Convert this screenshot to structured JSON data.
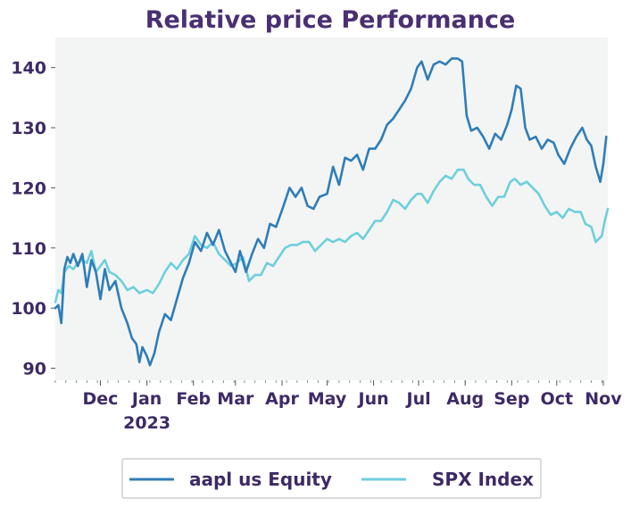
{
  "chart_data": {
    "type": "line",
    "title": "Relative price Performance",
    "xlabel": "",
    "ylabel": "",
    "ylim": [
      88,
      145
    ],
    "yticks": [
      90,
      100,
      110,
      120,
      130,
      140
    ],
    "xlim": [
      "2022-11-01",
      "2023-11-04"
    ],
    "xticks": [
      {
        "date": "2022-12-01",
        "label": "Dec"
      },
      {
        "date": "2023-01-01",
        "label": "Jan",
        "sublabel": "2023"
      },
      {
        "date": "2023-02-01",
        "label": "Feb"
      },
      {
        "date": "2023-03-01",
        "label": "Mar"
      },
      {
        "date": "2023-04-01",
        "label": "Apr"
      },
      {
        "date": "2023-05-01",
        "label": "May"
      },
      {
        "date": "2023-06-01",
        "label": "Jun"
      },
      {
        "date": "2023-07-01",
        "label": "Jul"
      },
      {
        "date": "2023-08-01",
        "label": "Aug"
      },
      {
        "date": "2023-09-01",
        "label": "Sep"
      },
      {
        "date": "2023-10-01",
        "label": "Oct"
      },
      {
        "date": "2023-11-01",
        "label": "Nov"
      }
    ],
    "grid": false,
    "legend_position": "bottom",
    "background_color": "#f3f5f4",
    "series": [
      {
        "name": "aapl us Equity",
        "color": "#2f7db8",
        "points": [
          [
            "2022-11-01",
            100.0
          ],
          [
            "2022-11-03",
            100.5
          ],
          [
            "2022-11-05",
            97.5
          ],
          [
            "2022-11-07",
            106.5
          ],
          [
            "2022-11-09",
            108.5
          ],
          [
            "2022-11-11",
            107.5
          ],
          [
            "2022-11-13",
            109.0
          ],
          [
            "2022-11-16",
            107.0
          ],
          [
            "2022-11-19",
            109.0
          ],
          [
            "2022-11-22",
            103.5
          ],
          [
            "2022-11-25",
            108.0
          ],
          [
            "2022-11-28",
            106.0
          ],
          [
            "2022-12-01",
            101.5
          ],
          [
            "2022-12-04",
            106.5
          ],
          [
            "2022-12-07",
            103.0
          ],
          [
            "2022-12-11",
            104.5
          ],
          [
            "2022-12-15",
            100.0
          ],
          [
            "2022-12-19",
            97.5
          ],
          [
            "2022-12-22",
            95.0
          ],
          [
            "2022-12-25",
            94.0
          ],
          [
            "2022-12-27",
            91.0
          ],
          [
            "2022-12-29",
            93.5
          ],
          [
            "2023-01-01",
            92.0
          ],
          [
            "2023-01-03",
            90.5
          ],
          [
            "2023-01-06",
            92.5
          ],
          [
            "2023-01-09",
            96.0
          ],
          [
            "2023-01-13",
            99.0
          ],
          [
            "2023-01-17",
            98.0
          ],
          [
            "2023-01-21",
            101.5
          ],
          [
            "2023-01-25",
            105.0
          ],
          [
            "2023-01-29",
            107.5
          ],
          [
            "2023-02-02",
            111.0
          ],
          [
            "2023-02-06",
            109.5
          ],
          [
            "2023-02-10",
            112.5
          ],
          [
            "2023-02-14",
            110.5
          ],
          [
            "2023-02-18",
            113.0
          ],
          [
            "2023-02-22",
            109.5
          ],
          [
            "2023-02-26",
            107.5
          ],
          [
            "2023-03-01",
            106.0
          ],
          [
            "2023-03-04",
            109.5
          ],
          [
            "2023-03-08",
            106.0
          ],
          [
            "2023-03-12",
            109.0
          ],
          [
            "2023-03-16",
            111.5
          ],
          [
            "2023-03-20",
            110.0
          ],
          [
            "2023-03-24",
            114.0
          ],
          [
            "2023-03-28",
            113.5
          ],
          [
            "2023-04-02",
            117.0
          ],
          [
            "2023-04-06",
            120.0
          ],
          [
            "2023-04-10",
            118.5
          ],
          [
            "2023-04-14",
            120.0
          ],
          [
            "2023-04-18",
            117.0
          ],
          [
            "2023-04-22",
            116.5
          ],
          [
            "2023-04-26",
            118.5
          ],
          [
            "2023-05-01",
            119.0
          ],
          [
            "2023-05-05",
            123.5
          ],
          [
            "2023-05-09",
            120.5
          ],
          [
            "2023-05-13",
            125.0
          ],
          [
            "2023-05-17",
            124.5
          ],
          [
            "2023-05-21",
            125.5
          ],
          [
            "2023-05-25",
            123.0
          ],
          [
            "2023-05-29",
            126.5
          ],
          [
            "2023-06-02",
            126.5
          ],
          [
            "2023-06-06",
            128.0
          ],
          [
            "2023-06-10",
            130.5
          ],
          [
            "2023-06-14",
            131.5
          ],
          [
            "2023-06-18",
            133.0
          ],
          [
            "2023-06-22",
            134.5
          ],
          [
            "2023-06-26",
            136.5
          ],
          [
            "2023-06-30",
            140.0
          ],
          [
            "2023-07-03",
            141.0
          ],
          [
            "2023-07-07",
            138.0
          ],
          [
            "2023-07-11",
            140.5
          ],
          [
            "2023-07-15",
            141.0
          ],
          [
            "2023-07-19",
            140.5
          ],
          [
            "2023-07-23",
            141.5
          ],
          [
            "2023-07-27",
            141.5
          ],
          [
            "2023-07-30",
            141.0
          ],
          [
            "2023-08-02",
            132.0
          ],
          [
            "2023-08-05",
            129.5
          ],
          [
            "2023-08-09",
            130.0
          ],
          [
            "2023-08-13",
            128.5
          ],
          [
            "2023-08-17",
            126.5
          ],
          [
            "2023-08-21",
            129.0
          ],
          [
            "2023-08-25",
            128.0
          ],
          [
            "2023-08-29",
            130.5
          ],
          [
            "2023-09-01",
            133.0
          ],
          [
            "2023-09-04",
            137.0
          ],
          [
            "2023-09-07",
            136.5
          ],
          [
            "2023-09-10",
            130.0
          ],
          [
            "2023-09-13",
            128.0
          ],
          [
            "2023-09-17",
            128.5
          ],
          [
            "2023-09-21",
            126.5
          ],
          [
            "2023-09-25",
            128.0
          ],
          [
            "2023-09-29",
            127.5
          ],
          [
            "2023-10-02",
            125.5
          ],
          [
            "2023-10-06",
            124.0
          ],
          [
            "2023-10-10",
            126.5
          ],
          [
            "2023-10-14",
            128.5
          ],
          [
            "2023-10-18",
            130.0
          ],
          [
            "2023-10-21",
            128.0
          ],
          [
            "2023-10-24",
            127.0
          ],
          [
            "2023-10-27",
            123.5
          ],
          [
            "2023-10-30",
            121.0
          ],
          [
            "2023-11-01",
            124.0
          ],
          [
            "2023-11-03",
            128.5
          ]
        ]
      },
      {
        "name": "SPX Index",
        "color": "#6ecfdc",
        "points": [
          [
            "2022-11-01",
            101.0
          ],
          [
            "2022-11-03",
            103.0
          ],
          [
            "2022-11-05",
            102.5
          ],
          [
            "2022-11-07",
            106.0
          ],
          [
            "2022-11-10",
            107.0
          ],
          [
            "2022-11-13",
            106.5
          ],
          [
            "2022-11-16",
            107.5
          ],
          [
            "2022-11-19",
            108.0
          ],
          [
            "2022-11-22",
            107.5
          ],
          [
            "2022-11-25",
            109.5
          ],
          [
            "2022-11-28",
            106.0
          ],
          [
            "2022-12-01",
            107.0
          ],
          [
            "2022-12-04",
            108.0
          ],
          [
            "2022-12-07",
            106.0
          ],
          [
            "2022-12-11",
            105.5
          ],
          [
            "2022-12-15",
            104.5
          ],
          [
            "2022-12-19",
            103.0
          ],
          [
            "2022-12-23",
            103.5
          ],
          [
            "2022-12-27",
            102.5
          ],
          [
            "2023-01-01",
            103.0
          ],
          [
            "2023-01-05",
            102.5
          ],
          [
            "2023-01-09",
            104.0
          ],
          [
            "2023-01-13",
            106.0
          ],
          [
            "2023-01-17",
            107.5
          ],
          [
            "2023-01-21",
            106.5
          ],
          [
            "2023-01-25",
            108.0
          ],
          [
            "2023-01-29",
            109.0
          ],
          [
            "2023-02-02",
            112.0
          ],
          [
            "2023-02-06",
            110.5
          ],
          [
            "2023-02-10",
            110.0
          ],
          [
            "2023-02-14",
            111.0
          ],
          [
            "2023-02-18",
            109.0
          ],
          [
            "2023-02-22",
            108.0
          ],
          [
            "2023-02-26",
            107.0
          ],
          [
            "2023-03-02",
            107.5
          ],
          [
            "2023-03-06",
            108.5
          ],
          [
            "2023-03-10",
            104.5
          ],
          [
            "2023-03-14",
            105.5
          ],
          [
            "2023-03-18",
            105.5
          ],
          [
            "2023-03-22",
            107.5
          ],
          [
            "2023-03-26",
            107.0
          ],
          [
            "2023-03-30",
            108.5
          ],
          [
            "2023-04-03",
            110.0
          ],
          [
            "2023-04-07",
            110.5
          ],
          [
            "2023-04-11",
            110.5
          ],
          [
            "2023-04-15",
            111.0
          ],
          [
            "2023-04-19",
            111.0
          ],
          [
            "2023-04-23",
            109.5
          ],
          [
            "2023-04-27",
            110.5
          ],
          [
            "2023-05-01",
            111.5
          ],
          [
            "2023-05-05",
            111.0
          ],
          [
            "2023-05-09",
            111.5
          ],
          [
            "2023-05-13",
            111.0
          ],
          [
            "2023-05-17",
            112.0
          ],
          [
            "2023-05-21",
            112.5
          ],
          [
            "2023-05-25",
            111.5
          ],
          [
            "2023-05-29",
            113.0
          ],
          [
            "2023-06-02",
            114.5
          ],
          [
            "2023-06-06",
            114.5
          ],
          [
            "2023-06-10",
            116.0
          ],
          [
            "2023-06-14",
            118.0
          ],
          [
            "2023-06-18",
            117.5
          ],
          [
            "2023-06-22",
            116.5
          ],
          [
            "2023-06-26",
            118.0
          ],
          [
            "2023-06-30",
            119.0
          ],
          [
            "2023-07-03",
            119.0
          ],
          [
            "2023-07-07",
            117.5
          ],
          [
            "2023-07-11",
            119.5
          ],
          [
            "2023-07-15",
            121.0
          ],
          [
            "2023-07-19",
            122.0
          ],
          [
            "2023-07-23",
            121.5
          ],
          [
            "2023-07-27",
            123.0
          ],
          [
            "2023-07-31",
            123.0
          ],
          [
            "2023-08-03",
            121.5
          ],
          [
            "2023-08-07",
            120.5
          ],
          [
            "2023-08-11",
            120.5
          ],
          [
            "2023-08-15",
            118.5
          ],
          [
            "2023-08-19",
            117.0
          ],
          [
            "2023-08-23",
            118.5
          ],
          [
            "2023-08-27",
            118.5
          ],
          [
            "2023-08-31",
            121.0
          ],
          [
            "2023-09-03",
            121.5
          ],
          [
            "2023-09-07",
            120.5
          ],
          [
            "2023-09-11",
            121.0
          ],
          [
            "2023-09-15",
            120.0
          ],
          [
            "2023-09-19",
            119.0
          ],
          [
            "2023-09-23",
            117.0
          ],
          [
            "2023-09-27",
            115.5
          ],
          [
            "2023-10-01",
            116.0
          ],
          [
            "2023-10-05",
            115.0
          ],
          [
            "2023-10-09",
            116.5
          ],
          [
            "2023-10-13",
            116.0
          ],
          [
            "2023-10-17",
            116.0
          ],
          [
            "2023-10-20",
            114.0
          ],
          [
            "2023-10-24",
            113.5
          ],
          [
            "2023-10-27",
            111.0
          ],
          [
            "2023-10-31",
            112.0
          ],
          [
            "2023-11-02",
            114.5
          ],
          [
            "2023-11-04",
            116.5
          ]
        ]
      }
    ]
  }
}
